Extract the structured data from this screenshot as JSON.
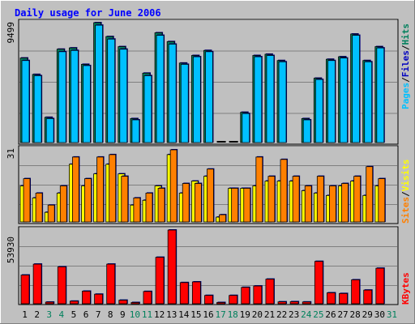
{
  "chart_data": [
    {
      "type": "bar",
      "title": "Daily usage for June 2006",
      "categories": [
        "1",
        "2",
        "3",
        "4",
        "5",
        "6",
        "7",
        "8",
        "9",
        "10",
        "11",
        "12",
        "13",
        "14",
        "15",
        "16",
        "17",
        "18",
        "19",
        "20",
        "21",
        "22",
        "23",
        "24",
        "25",
        "26",
        "27",
        "28",
        "29",
        "30",
        "31"
      ],
      "weekend_days": [
        "3",
        "4",
        "10",
        "11",
        "17",
        "18",
        "24",
        "25",
        "31"
      ],
      "ymax_label": "9499",
      "ylim": [
        0,
        9499
      ],
      "legend": [
        "Pages",
        "/",
        "Files",
        "/",
        "Hits"
      ],
      "series": [
        {
          "name": "Hits",
          "values": [
            6700,
            5400,
            2000,
            7400,
            7500,
            6200,
            9499,
            8400,
            7600,
            1900,
            5500,
            8700,
            8000,
            6300,
            6900,
            7300,
            0,
            0,
            2400,
            6900,
            7000,
            6500,
            0,
            1900,
            5100,
            6600,
            6800,
            8600,
            6500,
            7600,
            0
          ]
        },
        {
          "name": "Files",
          "values": [
            6500,
            5300,
            1900,
            7200,
            7300,
            6100,
            9300,
            8200,
            7400,
            1800,
            5300,
            8500,
            7800,
            6200,
            6800,
            7200,
            0,
            0,
            2300,
            6800,
            6900,
            6400,
            0,
            1800,
            5000,
            6500,
            6700,
            8500,
            6400,
            7500,
            0
          ]
        },
        {
          "name": "Pages",
          "values": [
            0,
            0,
            0,
            0,
            0,
            0,
            0,
            0,
            0,
            0,
            0,
            0,
            0,
            0,
            0,
            0,
            80,
            100,
            0,
            0,
            0,
            0,
            0,
            0,
            0,
            0,
            0,
            0,
            0,
            0,
            0
          ]
        }
      ],
      "colors": {
        "Hits": "#00805c",
        "Files": "#0000ff",
        "Pages": "#00c0ff",
        "legend_hits": "#00805c",
        "legend_files": "#0000c0",
        "legend_pages": "#00c0ff"
      }
    },
    {
      "type": "bar",
      "categories": [
        "1",
        "2",
        "3",
        "4",
        "5",
        "6",
        "7",
        "8",
        "9",
        "10",
        "11",
        "12",
        "13",
        "14",
        "15",
        "16",
        "17",
        "18",
        "19",
        "20",
        "21",
        "22",
        "23",
        "24",
        "25",
        "26",
        "27",
        "28",
        "29",
        "30",
        "31"
      ],
      "ymax_label": "31",
      "ylim": [
        0,
        31
      ],
      "legend": [
        "Sites",
        "/",
        "Visits"
      ],
      "series": [
        {
          "name": "Visits",
          "values": [
            15,
            10,
            4,
            12,
            24,
            15,
            20,
            24,
            20,
            7,
            9,
            15,
            28,
            12,
            17,
            19,
            2,
            14,
            14,
            15,
            17,
            17,
            17,
            13,
            12,
            11,
            15,
            17,
            11,
            15,
            0
          ]
        },
        {
          "name": "Sites",
          "values": [
            18,
            12,
            7,
            15,
            27,
            18,
            27,
            28,
            19,
            10,
            12,
            14,
            30,
            16,
            16,
            22,
            3,
            14,
            14,
            27,
            19,
            26,
            19,
            15,
            19,
            15,
            16,
            19,
            23,
            18,
            0
          ]
        }
      ],
      "colors": {
        "Visits": "#ffff00",
        "Sites": "#ff8000",
        "legend_sites": "#ff8000",
        "legend_visits": "#ffff00"
      }
    },
    {
      "type": "bar",
      "categories": [
        "1",
        "2",
        "3",
        "4",
        "5",
        "6",
        "7",
        "8",
        "9",
        "10",
        "11",
        "12",
        "13",
        "14",
        "15",
        "16",
        "17",
        "18",
        "19",
        "20",
        "21",
        "22",
        "23",
        "24",
        "25",
        "26",
        "27",
        "28",
        "29",
        "30",
        "31"
      ],
      "ymax_label": "53930",
      "ylim": [
        0,
        53930
      ],
      "legend": [
        "KBytes"
      ],
      "series": [
        {
          "name": "KBytes",
          "values": [
            21000,
            29000,
            1200,
            27000,
            1900,
            9200,
            7000,
            29000,
            2600,
            900,
            9000,
            34000,
            53930,
            15500,
            16000,
            6100,
            900,
            6100,
            12000,
            13000,
            18000,
            1400,
            1500,
            1300,
            31000,
            8000,
            7500,
            17500,
            10000,
            26000,
            0
          ]
        }
      ],
      "colors": {
        "KBytes": "#ff0000",
        "legend_kbytes": "#ff0000"
      }
    }
  ]
}
